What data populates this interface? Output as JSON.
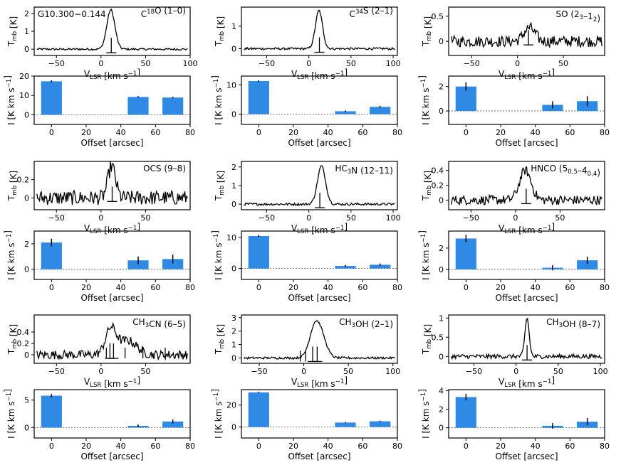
{
  "bar_color": "#2f8ae5",
  "line_color": "#000000",
  "source_label": "G10.300−0.144",
  "axis_labels": {
    "spec_y_main": "T",
    "spec_y_sub": "mb",
    "spec_y_unit": " [K]",
    "spec_x_main": "V",
    "spec_x_sub": "LSR",
    "spec_x_unit": " [km s",
    "bar_y_main": "I",
    "bar_y_unit": " [K km s",
    "bar_x": "Offset [arcsec]",
    "minus_one": "−1",
    "close": "]"
  },
  "chart_data": [
    {
      "type": "line",
      "panel": "spectrum",
      "title": "C18O (1–0)",
      "label_parts": [
        {
          "t": "C"
        },
        {
          "t": "18",
          "sup": true
        },
        {
          "t": "O (1–0)"
        }
      ],
      "xlim": [
        -75,
        100
      ],
      "ylim": [
        -0.35,
        2.35
      ],
      "xticks": [
        -50,
        0,
        50,
        100
      ],
      "yticks": [
        0,
        1,
        2
      ],
      "peak_v": 11,
      "peak_t": 2.2,
      "width": 4.5,
      "noise": 0.035,
      "markers": [
        {
          "v": 11.5,
          "long": true
        }
      ]
    },
    {
      "type": "line",
      "panel": "spectrum",
      "title": "C34S (2–1)",
      "label_parts": [
        {
          "t": "C"
        },
        {
          "t": "34",
          "sup": true
        },
        {
          "t": "S (2–1)"
        }
      ],
      "xlim": [
        -80,
        105
      ],
      "ylim": [
        -0.3,
        1.85
      ],
      "xticks": [
        -50,
        0,
        50,
        100
      ],
      "yticks": [
        0,
        1
      ],
      "peak_v": 12,
      "peak_t": 1.7,
      "width": 4.2,
      "noise": 0.03,
      "markers": [
        {
          "v": 12.5,
          "long": true
        }
      ]
    },
    {
      "type": "line",
      "panel": "spectrum",
      "title": "SO (23–12)",
      "label_parts": [
        {
          "t": "SO (2"
        },
        {
          "t": "3",
          "sub": true
        },
        {
          "t": "–1"
        },
        {
          "t": "2",
          "sub": true
        },
        {
          "t": ")"
        }
      ],
      "xlim": [
        -75,
        95
      ],
      "ylim": [
        -0.28,
        0.68
      ],
      "xticks": [
        -50,
        0,
        50
      ],
      "yticks": [
        0,
        0.5
      ],
      "peak_v": 13,
      "peak_t": 0.27,
      "width": 6,
      "noise": 0.07,
      "markers": [
        {
          "v": 12,
          "long": true
        }
      ]
    },
    {
      "type": "bar",
      "panel": "integrated",
      "categories": [
        0,
        50,
        70
      ],
      "values": [
        17.3,
        9.2,
        8.9
      ],
      "errors": [
        0.5,
        0.4,
        0.4
      ],
      "xlim": [
        -10,
        80
      ],
      "ylim": [
        -5,
        20
      ],
      "xticks": [
        0,
        20,
        40,
        60,
        80
      ],
      "yticks": [
        0,
        10,
        20
      ]
    },
    {
      "type": "bar",
      "panel": "integrated",
      "categories": [
        0,
        50,
        70
      ],
      "values": [
        11.3,
        1.0,
        2.5
      ],
      "errors": [
        0.3,
        0.25,
        0.35
      ],
      "xlim": [
        -10,
        80
      ],
      "ylim": [
        -3.5,
        13
      ],
      "xticks": [
        0,
        20,
        40,
        60,
        80
      ],
      "yticks": [
        0,
        10
      ]
    },
    {
      "type": "bar",
      "panel": "integrated",
      "categories": [
        0,
        50,
        70
      ],
      "values": [
        2.0,
        0.5,
        0.8
      ],
      "errors": [
        0.35,
        0.3,
        0.4
      ],
      "xlim": [
        -10,
        80
      ],
      "ylim": [
        -1.1,
        2.85
      ],
      "xticks": [
        0,
        20,
        40,
        60,
        80
      ],
      "yticks": [
        0,
        2
      ]
    },
    {
      "type": "line",
      "panel": "spectrum",
      "title": "OCS (9–8)",
      "label_parts": [
        {
          "t": "OCS (9–8)"
        }
      ],
      "xlim": [
        -75,
        100
      ],
      "ylim": [
        -0.13,
        0.4
      ],
      "xticks": [
        -50,
        0,
        50
      ],
      "yticks": [
        0,
        0.2
      ],
      "peak_v": 12,
      "peak_t": 0.35,
      "width": 4.2,
      "noise": 0.05,
      "markers": [
        {
          "v": 12.5,
          "long": true
        }
      ]
    },
    {
      "type": "line",
      "panel": "spectrum",
      "title": "HC3N (12–11)",
      "label_parts": [
        {
          "t": "HC"
        },
        {
          "t": "3",
          "sub": true
        },
        {
          "t": "N (12–11)"
        }
      ],
      "xlim": [
        -80,
        105
      ],
      "ylim": [
        -0.3,
        2.3
      ],
      "xticks": [
        -50,
        0,
        50,
        100
      ],
      "yticks": [
        0,
        1,
        2
      ],
      "peak_v": 15,
      "peak_t": 2.05,
      "width": 4.8,
      "noise": 0.04,
      "markers": [
        {
          "v": 13,
          "long": true
        }
      ]
    },
    {
      "type": "line",
      "panel": "spectrum",
      "title": "HNCO (50,5–40,4)",
      "label_parts": [
        {
          "t": "HNCO (5"
        },
        {
          "t": "0,5",
          "sub": true
        },
        {
          "t": "–4"
        },
        {
          "t": "0,4",
          "sub": true
        },
        {
          "t": ")"
        }
      ],
      "xlim": [
        -75,
        100
      ],
      "ylim": [
        -0.13,
        0.52
      ],
      "xticks": [
        -50,
        0,
        50
      ],
      "yticks": [
        0,
        0.2,
        0.4
      ],
      "peak_v": 11,
      "peak_t": 0.4,
      "width": 6.5,
      "noise": 0.04,
      "markers": [
        {
          "v": 12,
          "long": true
        }
      ]
    },
    {
      "type": "bar",
      "panel": "integrated",
      "categories": [
        0,
        50,
        70
      ],
      "values": [
        2.1,
        0.7,
        0.8
      ],
      "errors": [
        0.3,
        0.3,
        0.35
      ],
      "xlim": [
        -10,
        80
      ],
      "ylim": [
        -0.8,
        3.0
      ],
      "xticks": [
        0,
        20,
        40,
        60,
        80
      ],
      "yticks": [
        0,
        2
      ]
    },
    {
      "type": "bar",
      "panel": "integrated",
      "categories": [
        0,
        50,
        70
      ],
      "values": [
        10.4,
        0.8,
        1.2
      ],
      "errors": [
        0.35,
        0.3,
        0.4
      ],
      "xlim": [
        -10,
        80
      ],
      "ylim": [
        -3.5,
        12.0
      ],
      "xticks": [
        0,
        20,
        40,
        60,
        80
      ],
      "yticks": [
        0,
        10
      ]
    },
    {
      "type": "bar",
      "panel": "integrated",
      "categories": [
        0,
        50,
        70
      ],
      "values": [
        2.9,
        0.15,
        0.85
      ],
      "errors": [
        0.35,
        0.25,
        0.35
      ],
      "xlim": [
        -10,
        80
      ],
      "ylim": [
        -0.95,
        3.6
      ],
      "xticks": [
        0,
        20,
        40,
        60,
        80
      ],
      "yticks": [
        0,
        2
      ]
    },
    {
      "type": "line",
      "panel": "spectrum",
      "title": "CH3CN (6–5)",
      "label_parts": [
        {
          "t": "CH"
        },
        {
          "t": "3",
          "sub": true
        },
        {
          "t": "CN (6–5)"
        }
      ],
      "xlim": [
        -75,
        100
      ],
      "ylim": [
        -0.15,
        0.7
      ],
      "xticks": [
        -50,
        0,
        50
      ],
      "yticks": [
        0,
        0.2,
        0.4
      ],
      "peak_v": 11,
      "peak_t": 0.45,
      "width": 6,
      "noise": 0.05,
      "broad": [
        {
          "v": 30,
          "t": 0.25,
          "w": 10
        }
      ],
      "markers": [
        {
          "v": 6,
          "long": false
        },
        {
          "v": 10,
          "long": true
        },
        {
          "v": 14,
          "long": true
        },
        {
          "v": 27,
          "long": false
        },
        {
          "v": 47,
          "long": false
        },
        {
          "v": 72,
          "long": false
        }
      ]
    },
    {
      "type": "line",
      "panel": "spectrum",
      "title": "CH3OH (2–1)",
      "label_parts": [
        {
          "t": "CH"
        },
        {
          "t": "3",
          "sub": true
        },
        {
          "t": "OH (2–1)"
        }
      ],
      "xlim": [
        -70,
        105
      ],
      "ylim": [
        -0.4,
        3.2
      ],
      "xticks": [
        -50,
        0,
        50,
        100
      ],
      "yticks": [
        0,
        1,
        2,
        3
      ],
      "peak_v": 12,
      "peak_t": 2.1,
      "width": 6,
      "noise": 0.05,
      "broad": [
        {
          "v": 20,
          "t": 1.3,
          "w": 6
        }
      ],
      "markers": [
        {
          "v": -4,
          "long": false
        },
        {
          "v": 2,
          "long": false
        },
        {
          "v": 10,
          "long": true
        },
        {
          "v": 15,
          "long": true
        }
      ]
    },
    {
      "type": "line",
      "panel": "spectrum",
      "title": "CH3OH (8–7)",
      "label_parts": [
        {
          "t": "CH"
        },
        {
          "t": "3",
          "sub": true
        },
        {
          "t": "OH (8–7)"
        }
      ],
      "xlim": [
        -80,
        105
      ],
      "ylim": [
        -0.18,
        1.08
      ],
      "xticks": [
        -50,
        0,
        50,
        100
      ],
      "yticks": [
        0,
        0.5,
        1
      ],
      "peak_v": 13,
      "peak_t": 1.0,
      "width": 2.5,
      "noise": 0.035,
      "markers": [
        {
          "v": 13,
          "long": true
        }
      ]
    },
    {
      "type": "bar",
      "panel": "integrated",
      "categories": [
        0,
        50,
        70
      ],
      "values": [
        5.8,
        0.3,
        1.1
      ],
      "errors": [
        0.3,
        0.25,
        0.35
      ],
      "xlim": [
        -10,
        80
      ],
      "ylim": [
        -1.9,
        6.9
      ],
      "xticks": [
        0,
        20,
        40,
        60,
        80
      ],
      "yticks": [
        0,
        5
      ]
    },
    {
      "type": "bar",
      "panel": "integrated",
      "categories": [
        0,
        50,
        70
      ],
      "values": [
        31.5,
        4.0,
        5.2
      ],
      "errors": [
        0.6,
        0.5,
        0.5
      ],
      "xlim": [
        -10,
        80
      ],
      "ylim": [
        -10,
        34
      ],
      "xticks": [
        0,
        20,
        40,
        60,
        80
      ],
      "yticks": [
        0,
        20
      ]
    },
    {
      "type": "bar",
      "panel": "integrated",
      "categories": [
        0,
        50,
        70
      ],
      "values": [
        3.3,
        0.2,
        0.65
      ],
      "errors": [
        0.35,
        0.3,
        0.4
      ],
      "xlim": [
        -10,
        80
      ],
      "ylim": [
        -1.1,
        4.1
      ],
      "xticks": [
        0,
        20,
        40,
        60,
        80
      ],
      "yticks": [
        0,
        2,
        4
      ]
    }
  ]
}
